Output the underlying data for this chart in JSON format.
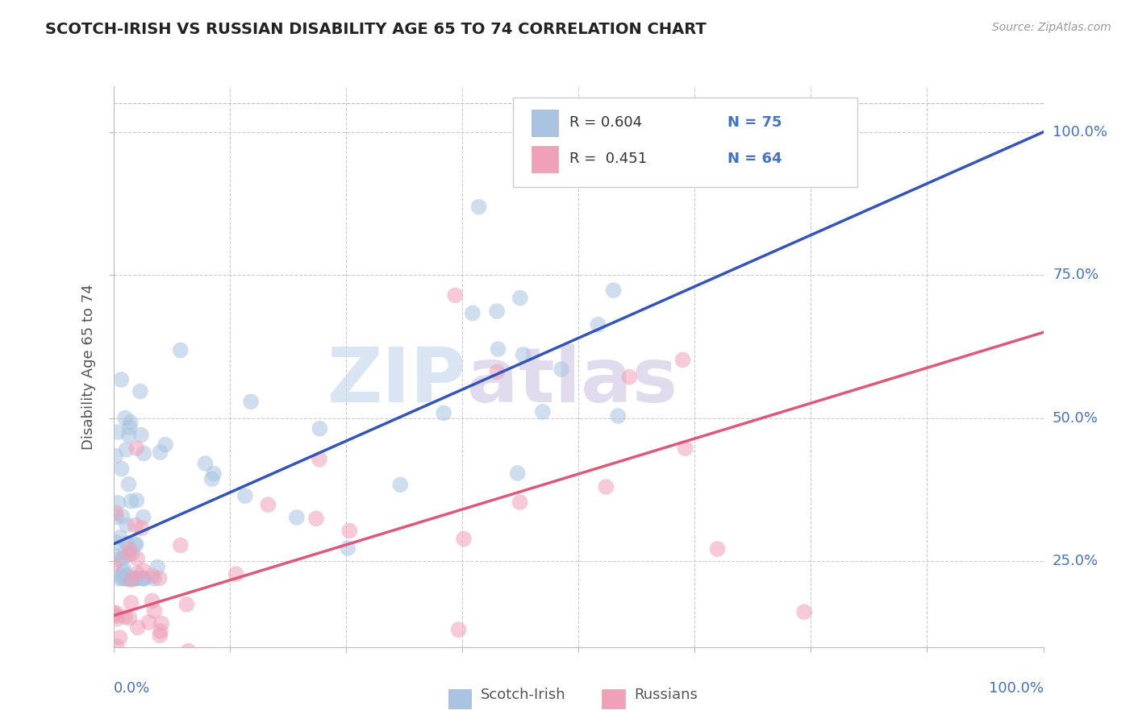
{
  "title": "SCOTCH-IRISH VS RUSSIAN DISABILITY AGE 65 TO 74 CORRELATION CHART",
  "source": "Source: ZipAtlas.com",
  "ylabel": "Disability Age 65 to 74",
  "watermark_zip": "ZIP",
  "watermark_atlas": "atlas",
  "legend_blue_r": "R = 0.604",
  "legend_blue_n": "N = 75",
  "legend_pink_r": "R =  0.451",
  "legend_pink_n": "N = 64",
  "blue_scatter_color": "#a8c4e0",
  "pink_scatter_color": "#f0a0b8",
  "blue_line_color": "#3355bb",
  "pink_line_color": "#e05878",
  "axis_label_color": "#4472c4",
  "title_color": "#222222",
  "grid_color": "#cccccc",
  "legend_r_color": "#333333",
  "legend_n_color": "#4472c4",
  "bottom_legend_color": "#555555",
  "n_si": 75,
  "n_ru": 64,
  "seed": 123,
  "blue_line_start_y": 0.28,
  "blue_line_end_y": 1.0,
  "pink_line_start_y": 0.155,
  "pink_line_end_y": 0.65,
  "xmin": 0,
  "xmax": 100,
  "ymin": 0.1,
  "ymax": 1.08,
  "yticks": [
    0.25,
    0.5,
    0.75,
    1.0
  ],
  "ytick_labels": [
    "25.0%",
    "50.0%",
    "75.0%",
    "100.0%"
  ]
}
